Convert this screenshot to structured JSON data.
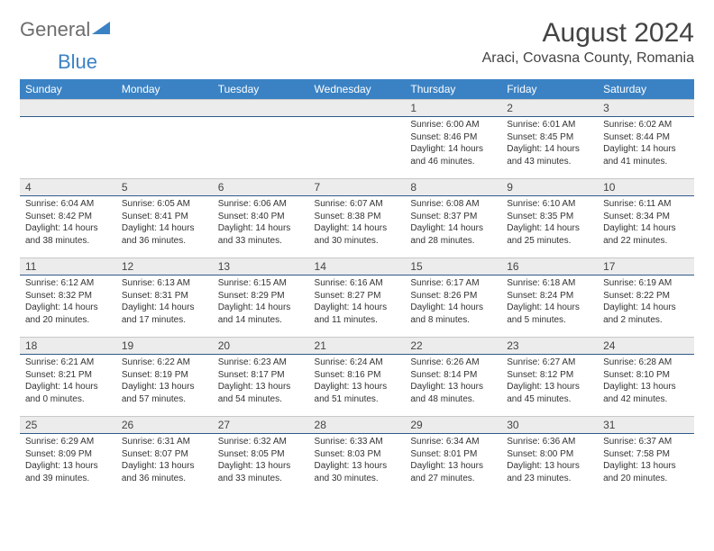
{
  "logo": {
    "text1": "General",
    "text2": "Blue",
    "icon_color": "#3a82c4"
  },
  "title": "August 2024",
  "location": "Araci, Covasna County, Romania",
  "header_bg": "#3a82c4",
  "header_fg": "#ffffff",
  "daynum_bg": "#ececec",
  "daynum_border_top": "#c8c8c8",
  "daynum_border_bottom": "#2f5a8a",
  "weekdays": [
    "Sunday",
    "Monday",
    "Tuesday",
    "Wednesday",
    "Thursday",
    "Friday",
    "Saturday"
  ],
  "weeks": [
    [
      {
        "day": "",
        "sunrise": "",
        "sunset": "",
        "daylight": ""
      },
      {
        "day": "",
        "sunrise": "",
        "sunset": "",
        "daylight": ""
      },
      {
        "day": "",
        "sunrise": "",
        "sunset": "",
        "daylight": ""
      },
      {
        "day": "",
        "sunrise": "",
        "sunset": "",
        "daylight": ""
      },
      {
        "day": "1",
        "sunrise": "Sunrise: 6:00 AM",
        "sunset": "Sunset: 8:46 PM",
        "daylight": "Daylight: 14 hours and 46 minutes."
      },
      {
        "day": "2",
        "sunrise": "Sunrise: 6:01 AM",
        "sunset": "Sunset: 8:45 PM",
        "daylight": "Daylight: 14 hours and 43 minutes."
      },
      {
        "day": "3",
        "sunrise": "Sunrise: 6:02 AM",
        "sunset": "Sunset: 8:44 PM",
        "daylight": "Daylight: 14 hours and 41 minutes."
      }
    ],
    [
      {
        "day": "4",
        "sunrise": "Sunrise: 6:04 AM",
        "sunset": "Sunset: 8:42 PM",
        "daylight": "Daylight: 14 hours and 38 minutes."
      },
      {
        "day": "5",
        "sunrise": "Sunrise: 6:05 AM",
        "sunset": "Sunset: 8:41 PM",
        "daylight": "Daylight: 14 hours and 36 minutes."
      },
      {
        "day": "6",
        "sunrise": "Sunrise: 6:06 AM",
        "sunset": "Sunset: 8:40 PM",
        "daylight": "Daylight: 14 hours and 33 minutes."
      },
      {
        "day": "7",
        "sunrise": "Sunrise: 6:07 AM",
        "sunset": "Sunset: 8:38 PM",
        "daylight": "Daylight: 14 hours and 30 minutes."
      },
      {
        "day": "8",
        "sunrise": "Sunrise: 6:08 AM",
        "sunset": "Sunset: 8:37 PM",
        "daylight": "Daylight: 14 hours and 28 minutes."
      },
      {
        "day": "9",
        "sunrise": "Sunrise: 6:10 AM",
        "sunset": "Sunset: 8:35 PM",
        "daylight": "Daylight: 14 hours and 25 minutes."
      },
      {
        "day": "10",
        "sunrise": "Sunrise: 6:11 AM",
        "sunset": "Sunset: 8:34 PM",
        "daylight": "Daylight: 14 hours and 22 minutes."
      }
    ],
    [
      {
        "day": "11",
        "sunrise": "Sunrise: 6:12 AM",
        "sunset": "Sunset: 8:32 PM",
        "daylight": "Daylight: 14 hours and 20 minutes."
      },
      {
        "day": "12",
        "sunrise": "Sunrise: 6:13 AM",
        "sunset": "Sunset: 8:31 PM",
        "daylight": "Daylight: 14 hours and 17 minutes."
      },
      {
        "day": "13",
        "sunrise": "Sunrise: 6:15 AM",
        "sunset": "Sunset: 8:29 PM",
        "daylight": "Daylight: 14 hours and 14 minutes."
      },
      {
        "day": "14",
        "sunrise": "Sunrise: 6:16 AM",
        "sunset": "Sunset: 8:27 PM",
        "daylight": "Daylight: 14 hours and 11 minutes."
      },
      {
        "day": "15",
        "sunrise": "Sunrise: 6:17 AM",
        "sunset": "Sunset: 8:26 PM",
        "daylight": "Daylight: 14 hours and 8 minutes."
      },
      {
        "day": "16",
        "sunrise": "Sunrise: 6:18 AM",
        "sunset": "Sunset: 8:24 PM",
        "daylight": "Daylight: 14 hours and 5 minutes."
      },
      {
        "day": "17",
        "sunrise": "Sunrise: 6:19 AM",
        "sunset": "Sunset: 8:22 PM",
        "daylight": "Daylight: 14 hours and 2 minutes."
      }
    ],
    [
      {
        "day": "18",
        "sunrise": "Sunrise: 6:21 AM",
        "sunset": "Sunset: 8:21 PM",
        "daylight": "Daylight: 14 hours and 0 minutes."
      },
      {
        "day": "19",
        "sunrise": "Sunrise: 6:22 AM",
        "sunset": "Sunset: 8:19 PM",
        "daylight": "Daylight: 13 hours and 57 minutes."
      },
      {
        "day": "20",
        "sunrise": "Sunrise: 6:23 AM",
        "sunset": "Sunset: 8:17 PM",
        "daylight": "Daylight: 13 hours and 54 minutes."
      },
      {
        "day": "21",
        "sunrise": "Sunrise: 6:24 AM",
        "sunset": "Sunset: 8:16 PM",
        "daylight": "Daylight: 13 hours and 51 minutes."
      },
      {
        "day": "22",
        "sunrise": "Sunrise: 6:26 AM",
        "sunset": "Sunset: 8:14 PM",
        "daylight": "Daylight: 13 hours and 48 minutes."
      },
      {
        "day": "23",
        "sunrise": "Sunrise: 6:27 AM",
        "sunset": "Sunset: 8:12 PM",
        "daylight": "Daylight: 13 hours and 45 minutes."
      },
      {
        "day": "24",
        "sunrise": "Sunrise: 6:28 AM",
        "sunset": "Sunset: 8:10 PM",
        "daylight": "Daylight: 13 hours and 42 minutes."
      }
    ],
    [
      {
        "day": "25",
        "sunrise": "Sunrise: 6:29 AM",
        "sunset": "Sunset: 8:09 PM",
        "daylight": "Daylight: 13 hours and 39 minutes."
      },
      {
        "day": "26",
        "sunrise": "Sunrise: 6:31 AM",
        "sunset": "Sunset: 8:07 PM",
        "daylight": "Daylight: 13 hours and 36 minutes."
      },
      {
        "day": "27",
        "sunrise": "Sunrise: 6:32 AM",
        "sunset": "Sunset: 8:05 PM",
        "daylight": "Daylight: 13 hours and 33 minutes."
      },
      {
        "day": "28",
        "sunrise": "Sunrise: 6:33 AM",
        "sunset": "Sunset: 8:03 PM",
        "daylight": "Daylight: 13 hours and 30 minutes."
      },
      {
        "day": "29",
        "sunrise": "Sunrise: 6:34 AM",
        "sunset": "Sunset: 8:01 PM",
        "daylight": "Daylight: 13 hours and 27 minutes."
      },
      {
        "day": "30",
        "sunrise": "Sunrise: 6:36 AM",
        "sunset": "Sunset: 8:00 PM",
        "daylight": "Daylight: 13 hours and 23 minutes."
      },
      {
        "day": "31",
        "sunrise": "Sunrise: 6:37 AM",
        "sunset": "Sunset: 7:58 PM",
        "daylight": "Daylight: 13 hours and 20 minutes."
      }
    ]
  ]
}
